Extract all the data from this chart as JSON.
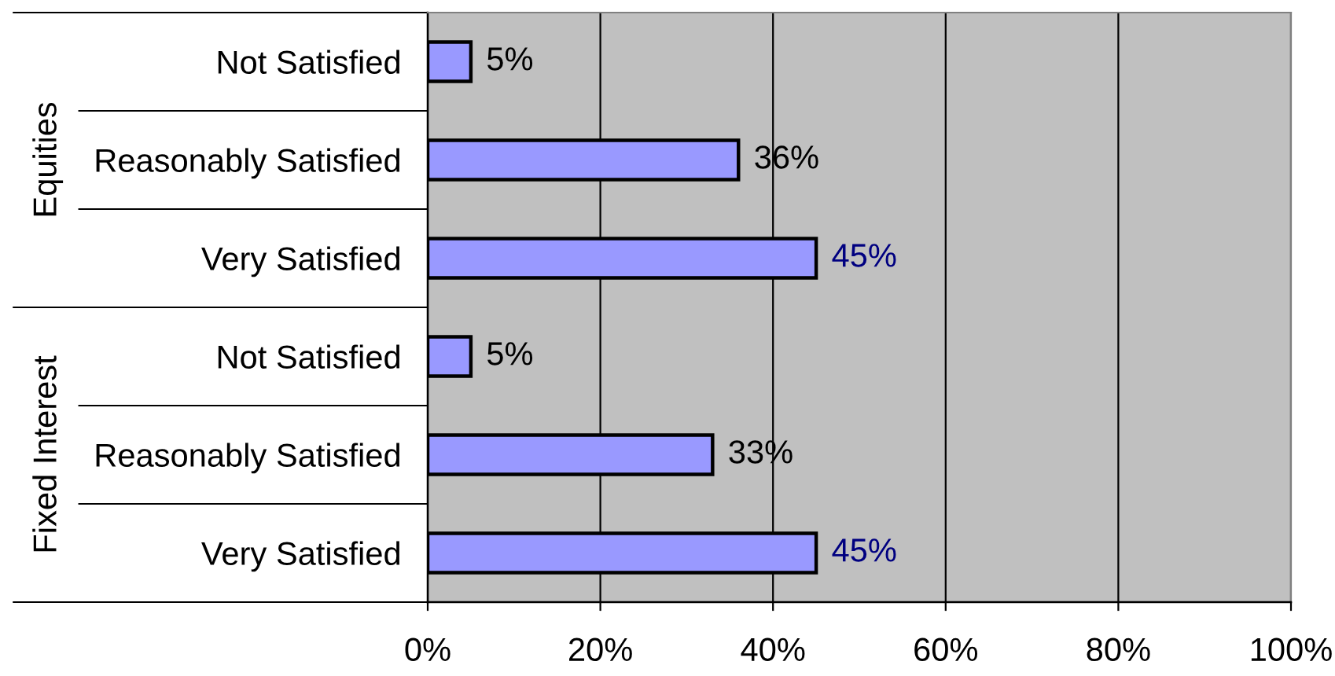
{
  "chart_data": {
    "type": "bar",
    "orientation": "horizontal",
    "categories": [
      "Not Satisfied",
      "Reasonably Satisfied",
      "Very Satisfied",
      "Not Satisfied",
      "Reasonably Satisfied",
      "Very Satisfied"
    ],
    "values": [
      5,
      36,
      45,
      5,
      33,
      45
    ],
    "color": "#9999ff",
    "value_labels": [
      "5%",
      "36%",
      "45%",
      "5%",
      "33%",
      "45%"
    ],
    "xlim": [
      0,
      100
    ],
    "xticks": [
      {
        "value": 0,
        "label": "0%"
      },
      {
        "value": 20,
        "label": "20%"
      },
      {
        "value": 40,
        "label": "40%"
      },
      {
        "value": 60,
        "label": "60%"
      },
      {
        "value": 80,
        "label": "80%"
      },
      {
        "value": 100,
        "label": "100%"
      }
    ],
    "grid": "x",
    "annotations": [
      "Equities",
      "Fixed Interest"
    ]
  }
}
